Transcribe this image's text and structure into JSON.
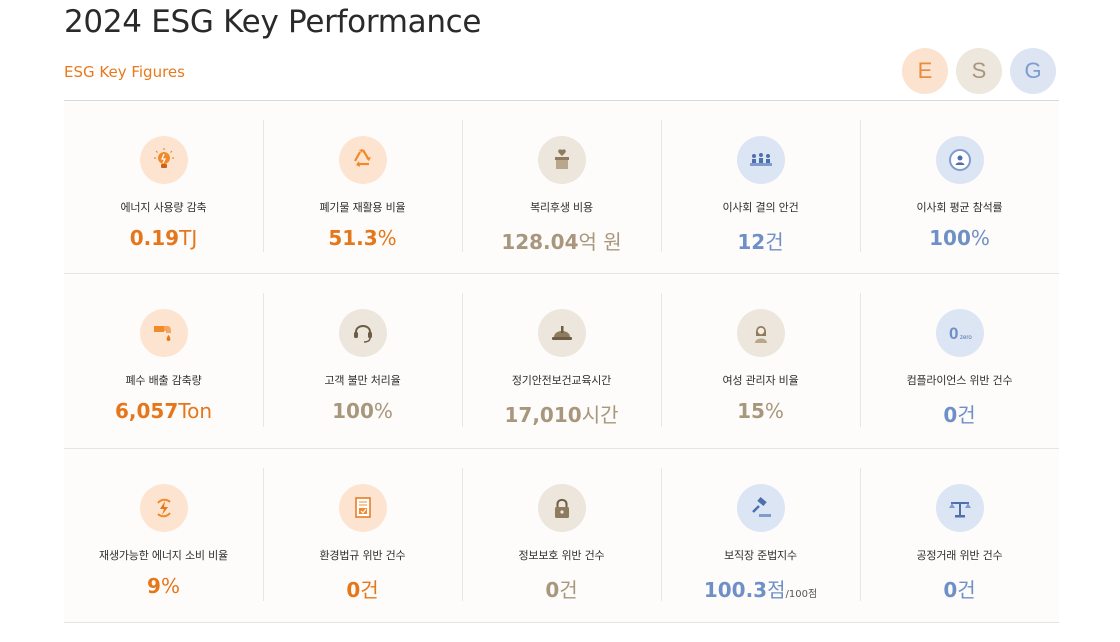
{
  "header": {
    "title": "2024 ESG Key Performance",
    "subtitle": "ESG Key Figures",
    "filters": [
      "E",
      "S",
      "G"
    ]
  },
  "colors": {
    "orange": "#e6761a",
    "beige": "#a8977c",
    "blue": "#6f8fc7"
  },
  "rows": [
    [
      {
        "label": "에너지 사용량 감축",
        "num": "0.19",
        "unit": "TJ",
        "icon": "lightbulb-icon",
        "tone": "orange"
      },
      {
        "label": "폐기물 재활용 비율",
        "num": "51.3",
        "unit": "%",
        "icon": "recycle-icon",
        "tone": "orange"
      },
      {
        "label": "복리후생 비용",
        "num": "128.04",
        "unit": "억 원",
        "icon": "gift-box-icon",
        "tone": "beige"
      },
      {
        "label": "이사회 결의 안건",
        "num": "12",
        "unit": "건",
        "icon": "board-meeting-icon",
        "tone": "blue"
      },
      {
        "label": "이사회 평균 참석률",
        "num": "100",
        "unit": "%",
        "icon": "attendee-icon",
        "tone": "blue"
      }
    ],
    [
      {
        "label": "폐수 배출 감축량",
        "num": "6,057",
        "unit": "Ton",
        "icon": "water-drop-pipe-icon",
        "tone": "orange"
      },
      {
        "label": "고객 불만 처리율",
        "num": "100",
        "unit": "%",
        "icon": "headset-icon",
        "tone": "beige"
      },
      {
        "label": "정기안전보건교육시간",
        "num": "17,010",
        "unit": "시간",
        "icon": "safety-helmet-icon",
        "tone": "beige"
      },
      {
        "label": "여성 관리자 비율",
        "num": "15",
        "unit": "%",
        "icon": "woman-manager-icon",
        "tone": "beige"
      },
      {
        "label": "컴플라이언스 위반 건수",
        "num": "0",
        "unit": "건",
        "icon": "zero-icon",
        "tone": "blue",
        "icon_text": "0",
        "icon_caption": "zero"
      }
    ],
    [
      {
        "label": "재생가능한 에너지 소비 비율",
        "num": "9",
        "unit": "%",
        "icon": "renewable-energy-icon",
        "tone": "orange"
      },
      {
        "label": "환경법규 위반 건수",
        "num": "0",
        "unit": "건",
        "icon": "document-check-icon",
        "tone": "orange"
      },
      {
        "label": "정보보호 위반 건수",
        "num": "0",
        "unit": "건",
        "icon": "padlock-icon",
        "tone": "beige"
      },
      {
        "label": "보직장 준법지수",
        "num": "100.3",
        "unit": "점",
        "sub": "/100점",
        "icon": "gavel-icon",
        "tone": "blue"
      },
      {
        "label": "공정거래 위반 건수",
        "num": "0",
        "unit": "건",
        "icon": "scales-icon",
        "tone": "blue"
      }
    ]
  ]
}
